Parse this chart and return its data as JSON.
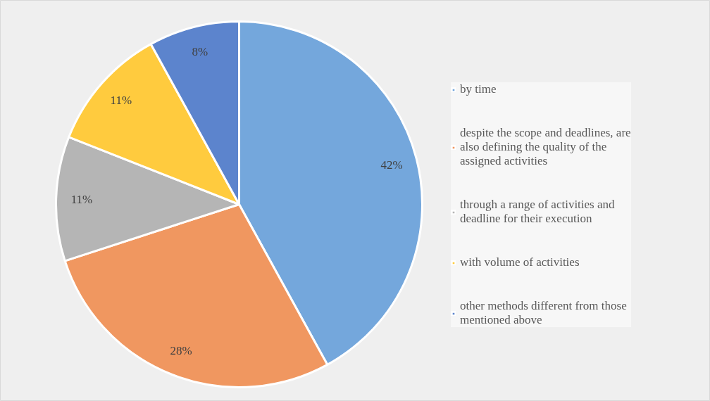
{
  "chart_data": {
    "type": "pie",
    "categories": [
      "by time",
      "despite the scope and deadlines, are also defining the quality of the assigned activities",
      "through a range of activities and deadline for their execution",
      "with volume of activities",
      "other methods different from those mentioned above"
    ],
    "values": [
      42,
      28,
      11,
      11,
      8
    ],
    "colors": [
      "#74a7dc",
      "#f09760",
      "#b5b5b5",
      "#ffcb3e",
      "#5c84cd"
    ],
    "value_labels": [
      "42%",
      "28%",
      "11%",
      "11%",
      "8%"
    ],
    "legend": "right"
  }
}
